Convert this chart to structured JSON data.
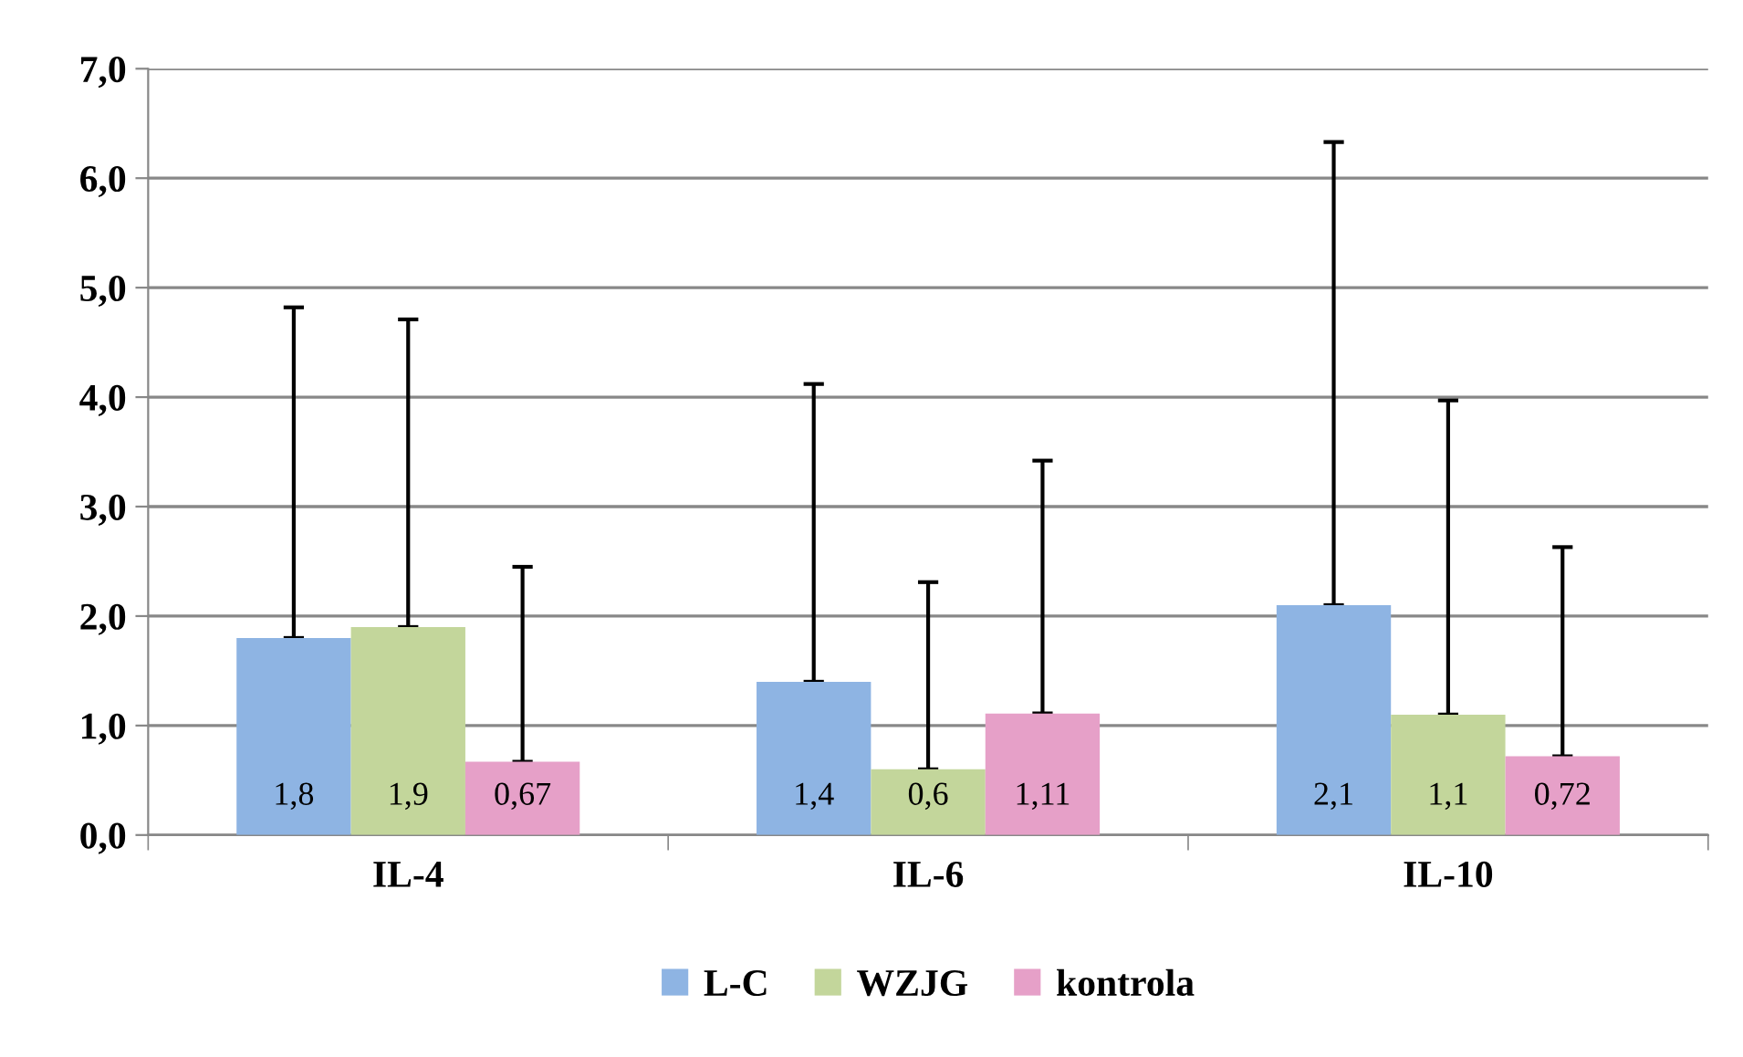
{
  "chart_data": {
    "type": "bar",
    "categories": [
      "IL-4",
      "IL-6",
      "IL-10"
    ],
    "series": [
      {
        "name": "L-C",
        "color": "#8eb4e3",
        "values": [
          1.8,
          1.4,
          2.1
        ],
        "value_labels": [
          "1,8",
          "1,4",
          "2,1"
        ],
        "errors": [
          [
            1.8,
            4.82
          ],
          [
            1.4,
            4.12
          ],
          [
            2.1,
            6.33
          ]
        ]
      },
      {
        "name": "WZJG",
        "color": "#c3d69b",
        "values": [
          1.9,
          0.6,
          1.1
        ],
        "value_labels": [
          "1,9",
          "0,6",
          "1,1"
        ],
        "errors": [
          [
            1.9,
            4.71
          ],
          [
            0.6,
            2.31
          ],
          [
            1.1,
            3.97
          ]
        ]
      },
      {
        "name": "kontrola",
        "color": "#e6a0c8",
        "values": [
          0.67,
          1.11,
          0.72
        ],
        "value_labels": [
          "0,67",
          "1,11",
          "0,72"
        ],
        "errors": [
          [
            0.67,
            2.45
          ],
          [
            1.11,
            3.42
          ],
          [
            0.72,
            2.63
          ]
        ]
      }
    ],
    "ylim": [
      0,
      7
    ],
    "yticks": [
      {
        "value": 0,
        "label": "0,0"
      },
      {
        "value": 1,
        "label": "1,0"
      },
      {
        "value": 2,
        "label": "2,0"
      },
      {
        "value": 3,
        "label": "3,0"
      },
      {
        "value": 4,
        "label": "4,0"
      },
      {
        "value": 5,
        "label": "5,0"
      },
      {
        "value": 6,
        "label": "6,0"
      },
      {
        "value": 7,
        "label": "7,0"
      }
    ],
    "grid": "y",
    "legend": "bottom"
  }
}
